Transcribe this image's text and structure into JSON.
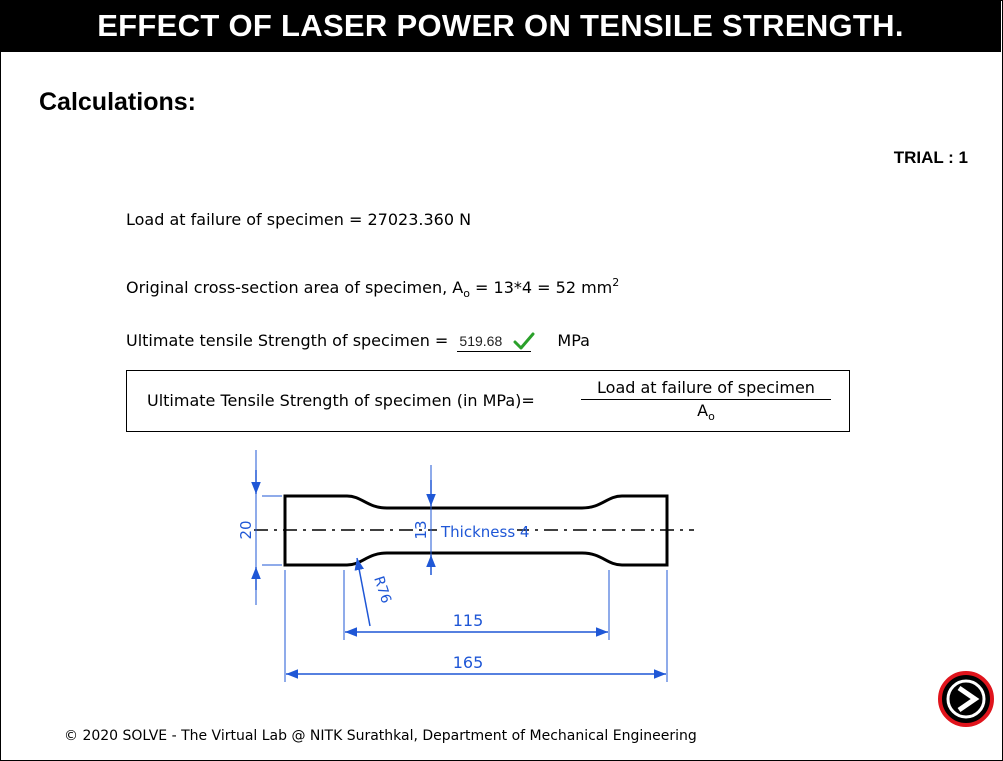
{
  "header": {
    "title": "EFFECT OF LASER POWER ON TENSILE STRENGTH."
  },
  "section": {
    "heading": "Calculations:"
  },
  "trial": {
    "label": "TRIAL : 1"
  },
  "calculations": {
    "load_label": "Load at failure of specimen = 27023.360 N",
    "area_label_prefix": "Original cross-section area of specimen, A",
    "area_sub": "o",
    "area_label_suffix": " = 13*4 = 52 mm",
    "area_sup": "2",
    "uts_label": "Ultimate tensile Strength of specimen = ",
    "uts_value": "519.68",
    "uts_unit": "MPa"
  },
  "formula": {
    "lhs": "Ultimate Tensile Strength of specimen (in MPa)=",
    "numerator": "Load at failure of specimen",
    "denominator_main": "A",
    "denominator_sub": "o"
  },
  "diagram": {
    "dim_width": "20",
    "dim_gauge_width": "13",
    "thickness_label": "Thickness 4",
    "radius_label": "R76",
    "dim_gauge_length": "115",
    "dim_total_length": "165"
  },
  "footer": {
    "text": "© 2020 SOLVE - The Virtual Lab @ NITK Surathkal, Department of Mechanical Engineering"
  },
  "icons": {
    "check": "check-icon",
    "next": "next-arrow-icon"
  },
  "colors": {
    "dimension_blue": "#1f57d6",
    "check_green": "#2aa02a",
    "next_ring_red": "#e0141c"
  }
}
